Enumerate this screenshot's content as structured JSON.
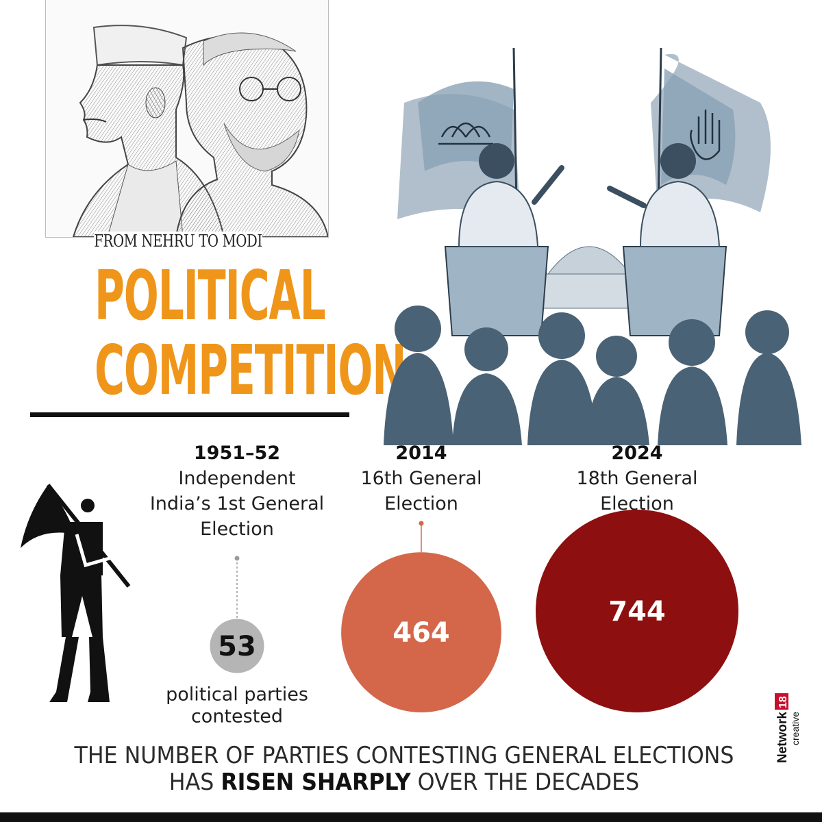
{
  "subtitle": "FROM NEHRU TO MODI",
  "title_line1": "POLITICAL",
  "title_line2": "COMPETITION",
  "colors": {
    "accent": "#ef961a",
    "bubble_1951": "#b5b5b5",
    "bubble_2014": "#d4674a",
    "bubble_2024": "#8e0f0f"
  },
  "chart_data": {
    "type": "bubble",
    "title": "",
    "xlabel": "",
    "ylabel": "",
    "categories": [
      "1951-52",
      "2014",
      "2024"
    ],
    "series": [
      {
        "values": [
          53,
          464,
          744
        ]
      }
    ],
    "columns": [
      {
        "year": "1951–52",
        "label_lines": [
          "Independent",
          "India’s 1st General",
          "Election"
        ],
        "value": 53,
        "value_label": "53",
        "note_lines": [
          "political parties",
          "contested"
        ]
      },
      {
        "year": "2014",
        "label_lines": [
          "16th General",
          "Election"
        ],
        "value": 464,
        "value_label": "464"
      },
      {
        "year": "2024",
        "label_lines": [
          "18th General",
          "Election"
        ],
        "value": 744,
        "value_label": "744"
      }
    ]
  },
  "caption": {
    "line1": "THE NUMBER OF PARTIES CONTESTING GENERAL ELECTIONS",
    "line2_prefix": "HAS ",
    "line2_bold": "RISEN SHARPLY",
    "line2_suffix": " OVER THE DECADES"
  },
  "brand": {
    "name": "Network",
    "badge": "18",
    "tagline": "creative"
  },
  "icons": [
    "nehru-modi-sketch-icon",
    "debate-illustration-icon",
    "flag-bearer-icon",
    "bjp-lotus-icon",
    "congress-hand-icon"
  ]
}
